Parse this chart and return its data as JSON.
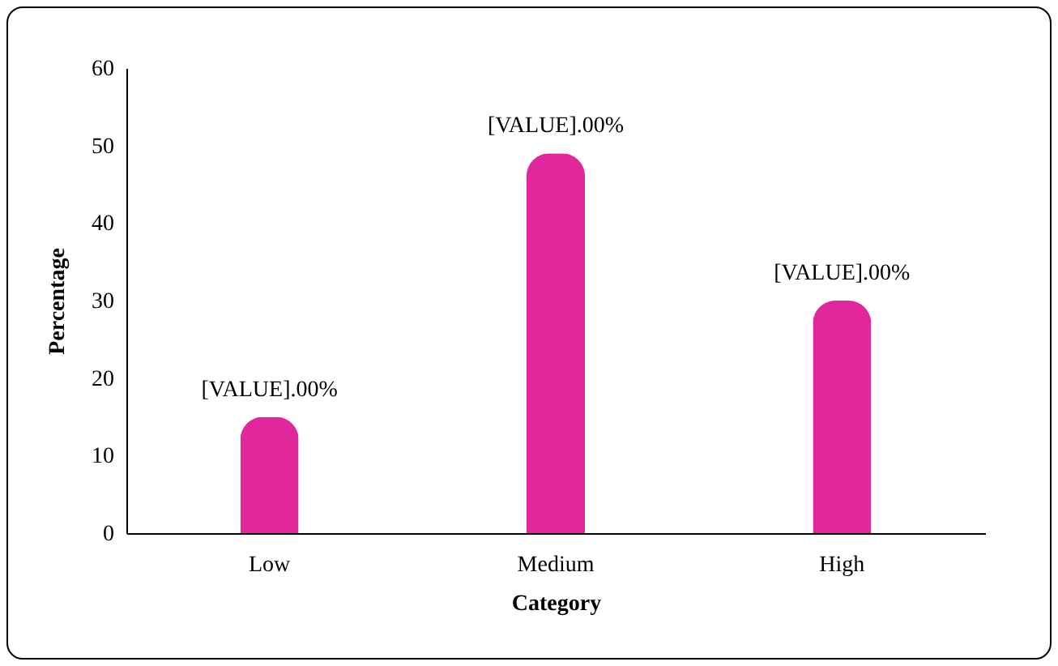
{
  "chart_data": {
    "type": "bar",
    "xlabel": "Category",
    "ylabel": "Percentage",
    "categories": [
      "Low",
      "Medium",
      "High"
    ],
    "values": [
      15,
      49,
      30
    ],
    "color": "#e0289c",
    "annotations": [
      {
        "text": "[VALUE].00%",
        "x": "Low",
        "y": 15
      },
      {
        "text": "[VALUE].00%",
        "x": "Medium",
        "y": 49
      },
      {
        "text": "[VALUE].00%",
        "x": "High",
        "y": 30
      }
    ],
    "ylim": [
      0,
      60
    ],
    "yticks": [
      0,
      10,
      20,
      30,
      40,
      50,
      60
    ],
    "grid": false
  }
}
